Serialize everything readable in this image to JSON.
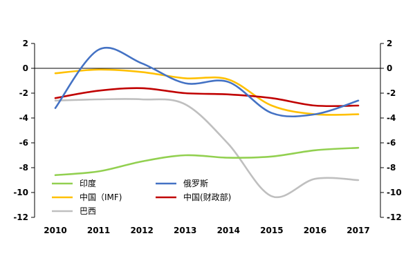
{
  "chart_data": {
    "type": "line",
    "categories": [
      "2010",
      "2011",
      "2012",
      "2013",
      "2014",
      "2015",
      "2016",
      "2017"
    ],
    "ylim": [
      -12,
      2
    ],
    "y_ticks": [
      "2",
      "0",
      "-2",
      "-4",
      "-6",
      "-8",
      "-10",
      "-12"
    ],
    "y_right_ticks": [
      "2",
      "0",
      "-2",
      "-4",
      "-6",
      "-8",
      "-10",
      "-12"
    ],
    "grid": false,
    "legend_position": "bottom-left-inside",
    "series": [
      {
        "name": "印度",
        "color": "#92d050",
        "values": [
          -8.6,
          -8.3,
          -7.5,
          -7.0,
          -7.2,
          -7.1,
          -6.6,
          -6.4
        ]
      },
      {
        "name": "俄罗斯",
        "color": "#4472c4",
        "values": [
          -3.2,
          1.5,
          0.4,
          -1.2,
          -1.1,
          -3.6,
          -3.7,
          -2.6
        ]
      },
      {
        "name": "中国（IMF)",
        "color": "#ffc000",
        "values": [
          -0.4,
          -0.1,
          -0.3,
          -0.8,
          -0.9,
          -3.0,
          -3.7,
          -3.7
        ]
      },
      {
        "name": "中国(财政部)",
        "color": "#c00000",
        "values": [
          -2.4,
          -1.8,
          -1.6,
          -2.0,
          -2.1,
          -2.4,
          -3.0,
          -3.0
        ]
      },
      {
        "name": "巴西",
        "color": "#bfbfbf",
        "values": [
          -2.6,
          -2.5,
          -2.5,
          -2.9,
          -6.1,
          -10.3,
          -8.9,
          -9.0
        ]
      }
    ]
  }
}
